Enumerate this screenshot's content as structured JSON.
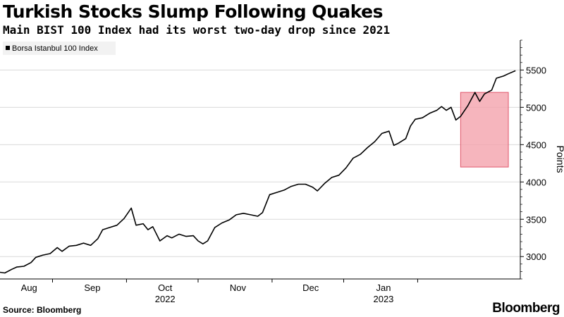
{
  "header": {
    "title": "Turkish Stocks Slump Following Quakes",
    "subtitle": "Main BIST 100 Index had its worst two-day drop since 2021"
  },
  "footer": {
    "source": "Source: Bloomberg",
    "brand": "Bloomberg"
  },
  "colors": {
    "line": "#000000",
    "grid": "#d9d9d9",
    "highlight_fill": "#f4a3ad",
    "highlight_stroke": "#e0566a"
  },
  "chart_data": {
    "type": "line",
    "title": "Turkish Stocks Slump Following Quakes",
    "subtitle": "Main BIST 100 Index had its worst two-day drop since 2021",
    "ylabel": "Points",
    "xlabel": "",
    "ylim": [
      2700,
      5900
    ],
    "y_ticks": [
      3000,
      3500,
      4000,
      4500,
      5000,
      5500
    ],
    "y_axis_position": "right",
    "grid": "horizontal",
    "legend": {
      "position": "top-left",
      "entries": [
        {
          "name": "Borsa Istanbul 100 Index",
          "color": "#000000"
        }
      ]
    },
    "x_ticks": [
      {
        "label": "Aug",
        "date": "2022-08-01"
      },
      {
        "label": "Sep",
        "date": "2022-09-01"
      },
      {
        "label": "Oct",
        "date": "2022-10-01"
      },
      {
        "label": "Nov",
        "date": "2022-11-01"
      },
      {
        "label": "Dec",
        "date": "2022-12-01"
      },
      {
        "label": "Jan",
        "date": "2023-01-01"
      }
    ],
    "year_labels": [
      {
        "label": "2022",
        "date": "2022-10-01"
      },
      {
        "label": "2023",
        "date": "2023-01-01"
      }
    ],
    "highlight": {
      "x_start": "2023-01-19",
      "x_end": "2023-02-08",
      "y_start": 4200,
      "y_end": 5200,
      "description": ""
    },
    "xlim": [
      "2022-07-10",
      "2023-02-13"
    ],
    "series": [
      {
        "name": "Borsa Istanbul 100 Index",
        "points": [
          [
            "2022-07-10",
            2790
          ],
          [
            "2022-07-12",
            2780
          ],
          [
            "2022-07-15",
            2830
          ],
          [
            "2022-07-17",
            2860
          ],
          [
            "2022-07-20",
            2870
          ],
          [
            "2022-07-23",
            2920
          ],
          [
            "2022-07-25",
            2990
          ],
          [
            "2022-07-28",
            3020
          ],
          [
            "2022-07-31",
            3040
          ],
          [
            "2022-08-03",
            3120
          ],
          [
            "2022-08-05",
            3070
          ],
          [
            "2022-08-08",
            3140
          ],
          [
            "2022-08-11",
            3150
          ],
          [
            "2022-08-14",
            3180
          ],
          [
            "2022-08-17",
            3150
          ],
          [
            "2022-08-20",
            3240
          ],
          [
            "2022-08-22",
            3360
          ],
          [
            "2022-08-25",
            3390
          ],
          [
            "2022-08-28",
            3420
          ],
          [
            "2022-08-31",
            3510
          ],
          [
            "2022-09-03",
            3650
          ],
          [
            "2022-09-05",
            3420
          ],
          [
            "2022-09-08",
            3440
          ],
          [
            "2022-09-10",
            3360
          ],
          [
            "2022-09-12",
            3400
          ],
          [
            "2022-09-15",
            3210
          ],
          [
            "2022-09-18",
            3280
          ],
          [
            "2022-09-20",
            3250
          ],
          [
            "2022-09-23",
            3300
          ],
          [
            "2022-09-26",
            3270
          ],
          [
            "2022-09-29",
            3280
          ],
          [
            "2022-10-01",
            3210
          ],
          [
            "2022-10-03",
            3170
          ],
          [
            "2022-10-05",
            3210
          ],
          [
            "2022-10-08",
            3390
          ],
          [
            "2022-10-11",
            3450
          ],
          [
            "2022-10-14",
            3490
          ],
          [
            "2022-10-17",
            3560
          ],
          [
            "2022-10-20",
            3580
          ],
          [
            "2022-10-23",
            3560
          ],
          [
            "2022-10-26",
            3540
          ],
          [
            "2022-10-28",
            3590
          ],
          [
            "2022-10-31",
            3830
          ],
          [
            "2022-11-03",
            3860
          ],
          [
            "2022-11-06",
            3890
          ],
          [
            "2022-11-09",
            3940
          ],
          [
            "2022-11-12",
            3970
          ],
          [
            "2022-11-15",
            3970
          ],
          [
            "2022-11-18",
            3930
          ],
          [
            "2022-11-20",
            3880
          ],
          [
            "2022-11-23",
            3980
          ],
          [
            "2022-11-26",
            4060
          ],
          [
            "2022-11-29",
            4090
          ],
          [
            "2022-12-02",
            4190
          ],
          [
            "2022-12-05",
            4320
          ],
          [
            "2022-12-08",
            4370
          ],
          [
            "2022-12-11",
            4460
          ],
          [
            "2022-12-14",
            4540
          ],
          [
            "2022-12-17",
            4650
          ],
          [
            "2022-12-20",
            4680
          ],
          [
            "2022-12-22",
            4490
          ],
          [
            "2022-12-24",
            4520
          ],
          [
            "2022-12-27",
            4580
          ],
          [
            "2022-12-29",
            4750
          ],
          [
            "2022-12-31",
            4840
          ],
          [
            "2023-01-03",
            4860
          ],
          [
            "2023-01-06",
            4920
          ],
          [
            "2023-01-09",
            4960
          ],
          [
            "2023-01-11",
            5010
          ],
          [
            "2023-01-13",
            4960
          ],
          [
            "2023-01-15",
            5000
          ],
          [
            "2023-01-17",
            4830
          ],
          [
            "2023-01-19",
            4880
          ],
          [
            "2023-01-22",
            5020
          ],
          [
            "2023-01-25",
            5200
          ],
          [
            "2023-01-27",
            5080
          ],
          [
            "2023-01-29",
            5180
          ],
          [
            "2023-02-01",
            5230
          ],
          [
            "2023-02-03",
            5390
          ],
          [
            "2023-02-06",
            5420
          ],
          [
            "2023-02-08",
            5450
          ],
          [
            "2023-02-11",
            5490
          ]
        ]
      }
    ]
  }
}
